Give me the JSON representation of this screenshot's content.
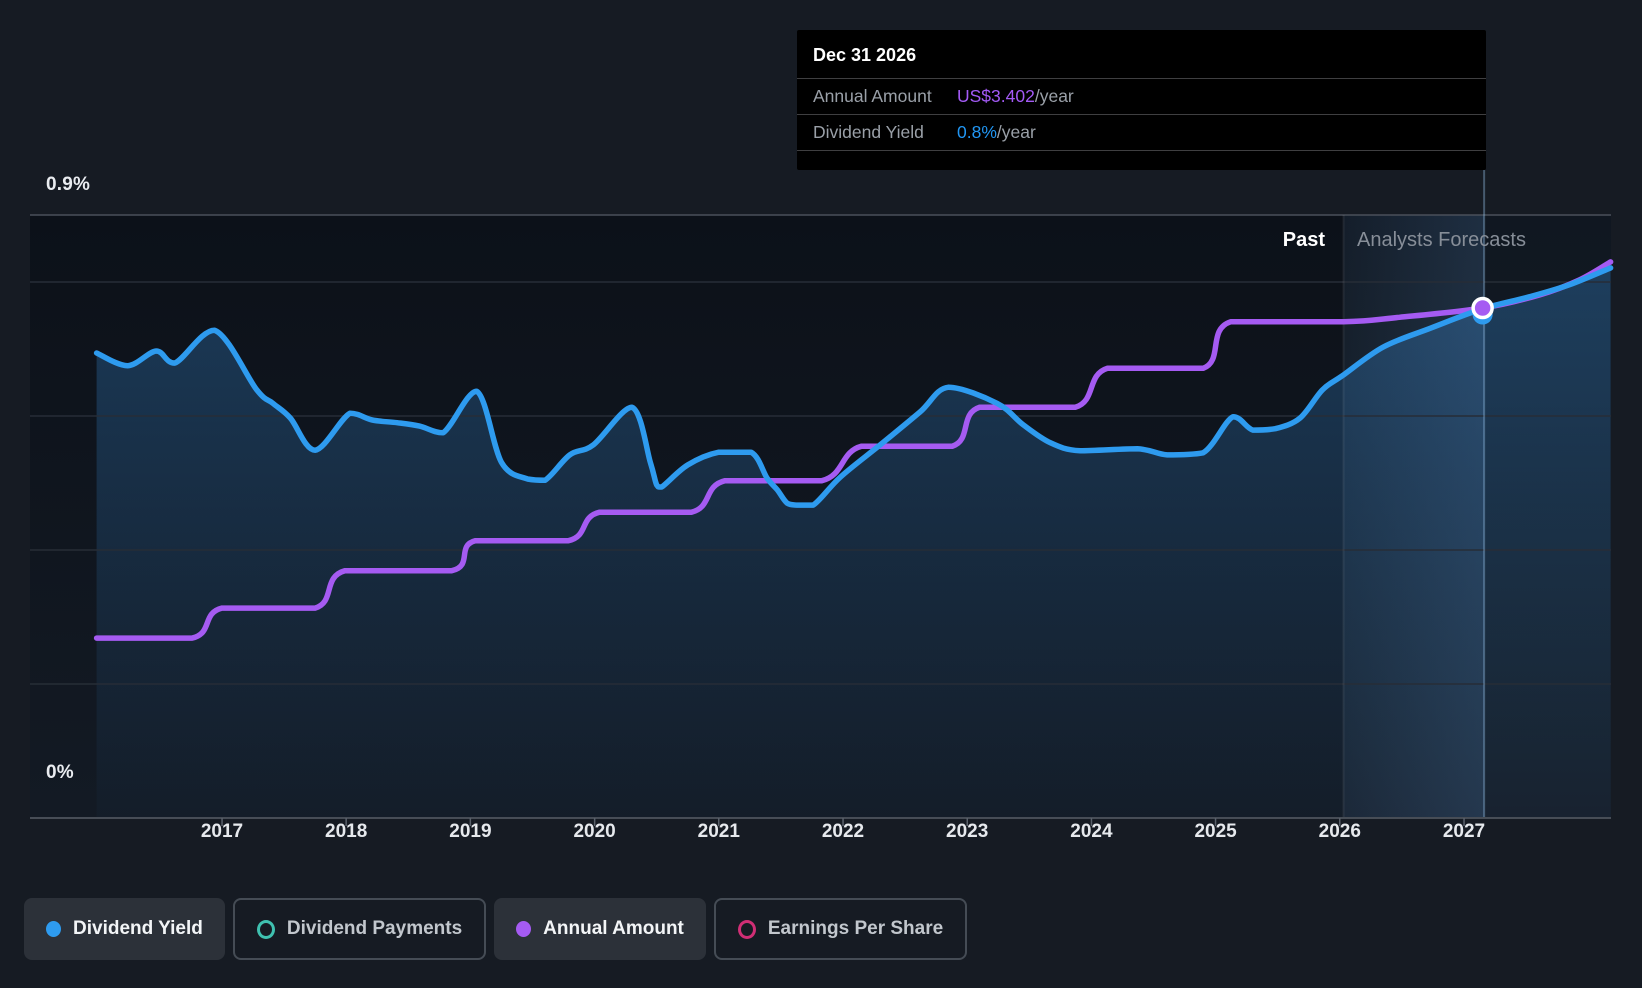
{
  "axis": {
    "y_top_label": "0.9%",
    "y_bottom_label": "0%"
  },
  "regions": {
    "past_label": "Past",
    "forecast_label": "Analysts Forecasts"
  },
  "tooltip": {
    "date": "Dec 31 2026",
    "rows": [
      {
        "label": "Annual Amount",
        "value": "US$3.402",
        "suffix": "/year",
        "value_color": "#a35af5"
      },
      {
        "label": "Dividend Yield",
        "value": "0.8%",
        "suffix": "/year",
        "value_color": "#2196f3"
      }
    ]
  },
  "legend": {
    "items": [
      {
        "label": "Dividend Yield",
        "state": "active",
        "marker": "filled-dot",
        "color": "#2e9bef"
      },
      {
        "label": "Dividend Payments",
        "state": "inactive",
        "marker": "ring",
        "color": "#3fc1b0"
      },
      {
        "label": "Annual Amount",
        "state": "active",
        "marker": "filled-dot",
        "color": "#a55bf2"
      },
      {
        "label": "Earnings Per Share",
        "state": "inactive",
        "marker": "ring",
        "color": "#d02e75"
      }
    ]
  },
  "chart_data": {
    "type": "line",
    "title": "Dividend history and forecast",
    "x_axis": {
      "unit": "year",
      "ticks": [
        2017,
        2018,
        2019,
        2020,
        2021,
        2022,
        2023,
        2024,
        2025,
        2026,
        2027
      ],
      "range": [
        2015.45,
        2028.2
      ]
    },
    "yield_axis": {
      "unit": "%",
      "range": [
        0,
        0.9
      ],
      "gridline_values": [
        0.9,
        0.8,
        0.6,
        0.4,
        0.2
      ],
      "label_top": "0.9%",
      "label_bottom": "0%"
    },
    "amount_axis": {
      "unit": "US$/year",
      "range": [
        0,
        4.02
      ]
    },
    "past_until": 2026.03,
    "marker": {
      "t": 2027.15,
      "date": "Dec 31 2026",
      "annual_amount": 3.402,
      "dividend_yield_pct": 0.8
    },
    "series": [
      {
        "name": "Dividend Yield",
        "type": "line",
        "unit": "%",
        "color": "#2e9bef",
        "visible": true,
        "area_fill": true,
        "points": [
          [
            2015.99,
            0.694
          ],
          [
            2016.24,
            0.675
          ],
          [
            2016.47,
            0.697
          ],
          [
            2016.62,
            0.679
          ],
          [
            2016.94,
            0.728
          ],
          [
            2017.28,
            0.639
          ],
          [
            2017.41,
            0.619
          ],
          [
            2017.55,
            0.597
          ],
          [
            2017.75,
            0.549
          ],
          [
            2018.03,
            0.604
          ],
          [
            2018.21,
            0.594
          ],
          [
            2018.41,
            0.59
          ],
          [
            2018.59,
            0.585
          ],
          [
            2018.78,
            0.575
          ],
          [
            2019.05,
            0.637
          ],
          [
            2019.25,
            0.531
          ],
          [
            2019.46,
            0.506
          ],
          [
            2019.6,
            0.504
          ],
          [
            2019.8,
            0.542
          ],
          [
            2019.99,
            0.557
          ],
          [
            2020.3,
            0.613
          ],
          [
            2020.45,
            0.53
          ],
          [
            2020.5,
            0.497
          ],
          [
            2020.54,
            0.494
          ],
          [
            2020.75,
            0.527
          ],
          [
            2021.0,
            0.546
          ],
          [
            2021.26,
            0.546
          ],
          [
            2021.39,
            0.507
          ],
          [
            2021.47,
            0.49
          ],
          [
            2021.55,
            0.47
          ],
          [
            2021.63,
            0.467
          ],
          [
            2021.76,
            0.467
          ],
          [
            2021.98,
            0.509
          ],
          [
            2022.3,
            0.557
          ],
          [
            2022.62,
            0.606
          ],
          [
            2022.85,
            0.643
          ],
          [
            2023.24,
            0.619
          ],
          [
            2023.45,
            0.587
          ],
          [
            2023.67,
            0.56
          ],
          [
            2023.91,
            0.548
          ],
          [
            2024.37,
            0.551
          ],
          [
            2024.61,
            0.542
          ],
          [
            2024.9,
            0.545
          ],
          [
            2025.14,
            0.599
          ],
          [
            2025.3,
            0.579
          ],
          [
            2025.48,
            0.581
          ],
          [
            2025.68,
            0.597
          ],
          [
            2025.86,
            0.639
          ],
          [
            2026.02,
            0.66
          ],
          [
            2026.35,
            0.703
          ],
          [
            2026.73,
            0.731
          ],
          [
            2027.15,
            0.76
          ],
          [
            2027.53,
            0.778
          ],
          [
            2027.85,
            0.796
          ],
          [
            2028.18,
            0.821
          ]
        ]
      },
      {
        "name": "Annual Amount",
        "type": "step-line",
        "unit": "US$/year",
        "color": "#a55bf2",
        "visible": true,
        "area_fill": false,
        "points": [
          [
            2015.99,
            1.2
          ],
          [
            2016.76,
            1.2
          ],
          [
            2017.0,
            1.4
          ],
          [
            2017.75,
            1.4
          ],
          [
            2017.99,
            1.65
          ],
          [
            2018.85,
            1.65
          ],
          [
            2019.04,
            1.85
          ],
          [
            2019.79,
            1.85
          ],
          [
            2020.04,
            2.04
          ],
          [
            2020.78,
            2.04
          ],
          [
            2021.05,
            2.25
          ],
          [
            2021.83,
            2.25
          ],
          [
            2022.15,
            2.48
          ],
          [
            2022.88,
            2.48
          ],
          [
            2023.1,
            2.74
          ],
          [
            2023.87,
            2.74
          ],
          [
            2024.13,
            3.0
          ],
          [
            2024.9,
            3.0
          ],
          [
            2025.12,
            3.31
          ],
          [
            2026.03,
            3.31
          ],
          [
            2026.48,
            3.34
          ],
          [
            2027.15,
            3.402
          ],
          [
            2027.61,
            3.49
          ],
          [
            2027.93,
            3.59
          ],
          [
            2028.18,
            3.71
          ]
        ]
      },
      {
        "name": "Dividend Payments",
        "type": "line",
        "color": "#3fc1b0",
        "visible": false,
        "points": []
      },
      {
        "name": "Earnings Per Share",
        "type": "line",
        "color": "#d02e75",
        "visible": false,
        "points": []
      }
    ],
    "legend_position": "bottom-left",
    "grid": "horizontal-only"
  }
}
